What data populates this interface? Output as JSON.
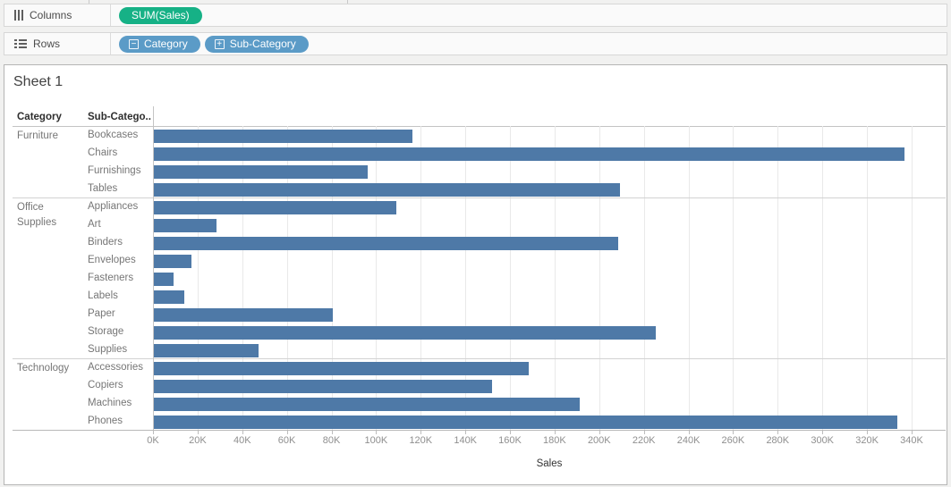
{
  "app": {
    "columns_shelf": {
      "label": "Columns",
      "pill": {
        "label": "SUM(Sales)"
      }
    },
    "rows_shelf": {
      "label": "Rows",
      "pills": [
        {
          "label": "Category",
          "toggle_glyph": "−"
        },
        {
          "label": "Sub-Category",
          "toggle_glyph": "+"
        }
      ]
    },
    "sheet_title": "Sheet 1"
  },
  "chart_data": {
    "type": "bar",
    "orientation": "horizontal",
    "title": "Sheet 1",
    "row_headers": [
      "Category",
      "Sub-Catego.."
    ],
    "xlabel": "Sales",
    "x_ticks": [
      "0K",
      "20K",
      "40K",
      "60K",
      "80K",
      "100K",
      "120K",
      "140K",
      "160K",
      "180K",
      "200K",
      "220K",
      "240K",
      "260K",
      "280K",
      "300K",
      "320K",
      "340K"
    ],
    "x_tick_step_k": 20,
    "xlim_k": [
      0,
      355
    ],
    "grid": true,
    "bar_color": "#4e79a7",
    "groups": [
      {
        "category": "Furniture",
        "items": [
          {
            "label": "Bookcases",
            "sales_k": 116
          },
          {
            "label": "Chairs",
            "sales_k": 336.5
          },
          {
            "label": "Furnishings",
            "sales_k": 96
          },
          {
            "label": "Tables",
            "sales_k": 209
          }
        ]
      },
      {
        "category": "Office Supplies",
        "items": [
          {
            "label": "Appliances",
            "sales_k": 108.5
          },
          {
            "label": "Art",
            "sales_k": 28
          },
          {
            "label": "Binders",
            "sales_k": 208
          },
          {
            "label": "Envelopes",
            "sales_k": 17
          },
          {
            "label": "Fasteners",
            "sales_k": 9
          },
          {
            "label": "Labels",
            "sales_k": 13.5
          },
          {
            "label": "Paper",
            "sales_k": 80
          },
          {
            "label": "Storage",
            "sales_k": 225
          },
          {
            "label": "Supplies",
            "sales_k": 47
          }
        ]
      },
      {
        "category": "Technology",
        "items": [
          {
            "label": "Accessories",
            "sales_k": 168
          },
          {
            "label": "Copiers",
            "sales_k": 151.5
          },
          {
            "label": "Machines",
            "sales_k": 191
          },
          {
            "label": "Phones",
            "sales_k": 333
          }
        ]
      }
    ]
  },
  "colors": {
    "measure_pill_green": "#16b186",
    "dimension_pill_blue": "#5b9bc7",
    "bar_blue": "#4e79a7"
  }
}
